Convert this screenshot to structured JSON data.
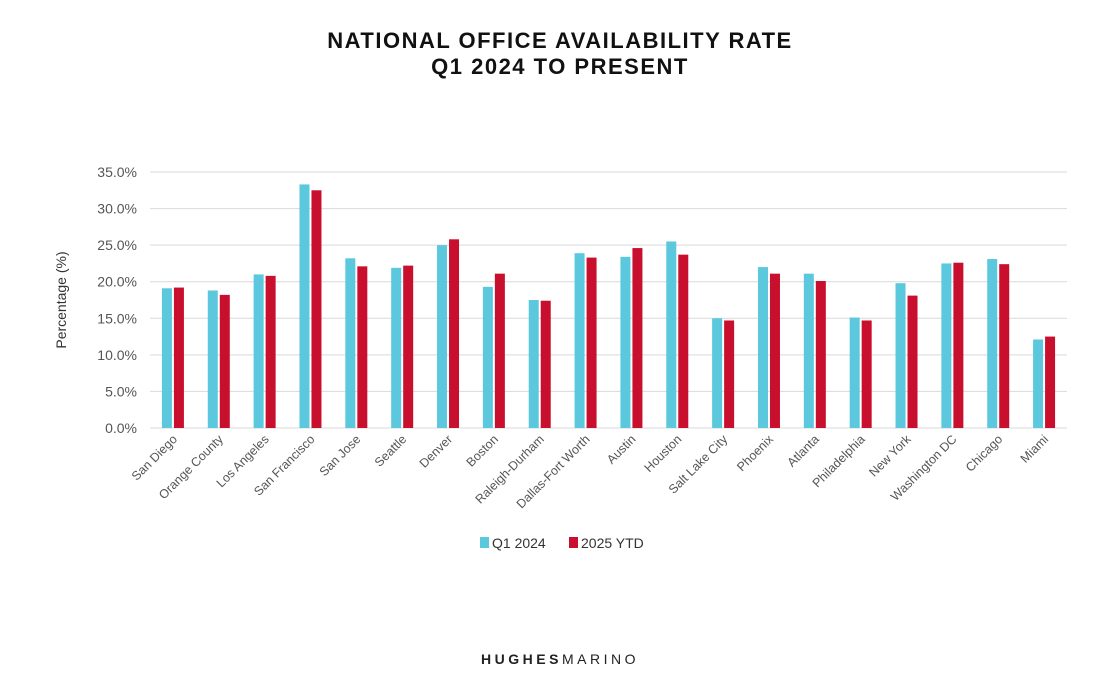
{
  "chart_data": {
    "type": "bar",
    "title": "NATIONAL OFFICE AVAILABILITY RATE",
    "subtitle": "Q1 2024 TO PRESENT",
    "xlabel": "",
    "ylabel": "Percentage (%)",
    "ylim": [
      0,
      35
    ],
    "yticks": [
      0,
      5,
      10,
      15,
      20,
      25,
      30,
      35
    ],
    "ytick_labels": [
      "0.0%",
      "5.0%",
      "10.0%",
      "15.0%",
      "20.0%",
      "25.0%",
      "30.0%",
      "35.0%"
    ],
    "grid": true,
    "legend_position": "bottom-center",
    "categories": [
      "San Diego",
      "Orange County",
      "Los Angeles",
      "San Francisco",
      "San Jose",
      "Seattle",
      "Denver",
      "Boston",
      "Raleigh-Durham",
      "Dallas-Fort Worth",
      "Austin",
      "Houston",
      "Salt Lake City",
      "Phoenix",
      "Atlanta",
      "Philadelphia",
      "New York",
      "Washington DC",
      "Chicago",
      "Miami"
    ],
    "series": [
      {
        "name": "Q1 2024",
        "color": "#5BC8DE",
        "values": [
          19.1,
          18.8,
          21.0,
          33.3,
          23.2,
          21.9,
          25.0,
          19.3,
          17.5,
          23.9,
          23.4,
          25.5,
          15.0,
          22.0,
          21.1,
          15.1,
          19.8,
          22.5,
          23.1,
          12.1
        ]
      },
      {
        "name": "2025 YTD",
        "color": "#C8102E",
        "values": [
          19.2,
          18.2,
          20.8,
          32.5,
          22.1,
          22.2,
          25.8,
          21.1,
          17.4,
          23.3,
          24.6,
          23.7,
          14.7,
          21.1,
          20.1,
          14.7,
          18.1,
          22.6,
          22.4,
          12.5
        ]
      }
    ]
  },
  "footer": {
    "brand_bold": "HUGHES",
    "brand_light": "MARINO"
  },
  "colors": {
    "gridline": "#D9D9D9",
    "axis_text": "#555555"
  }
}
